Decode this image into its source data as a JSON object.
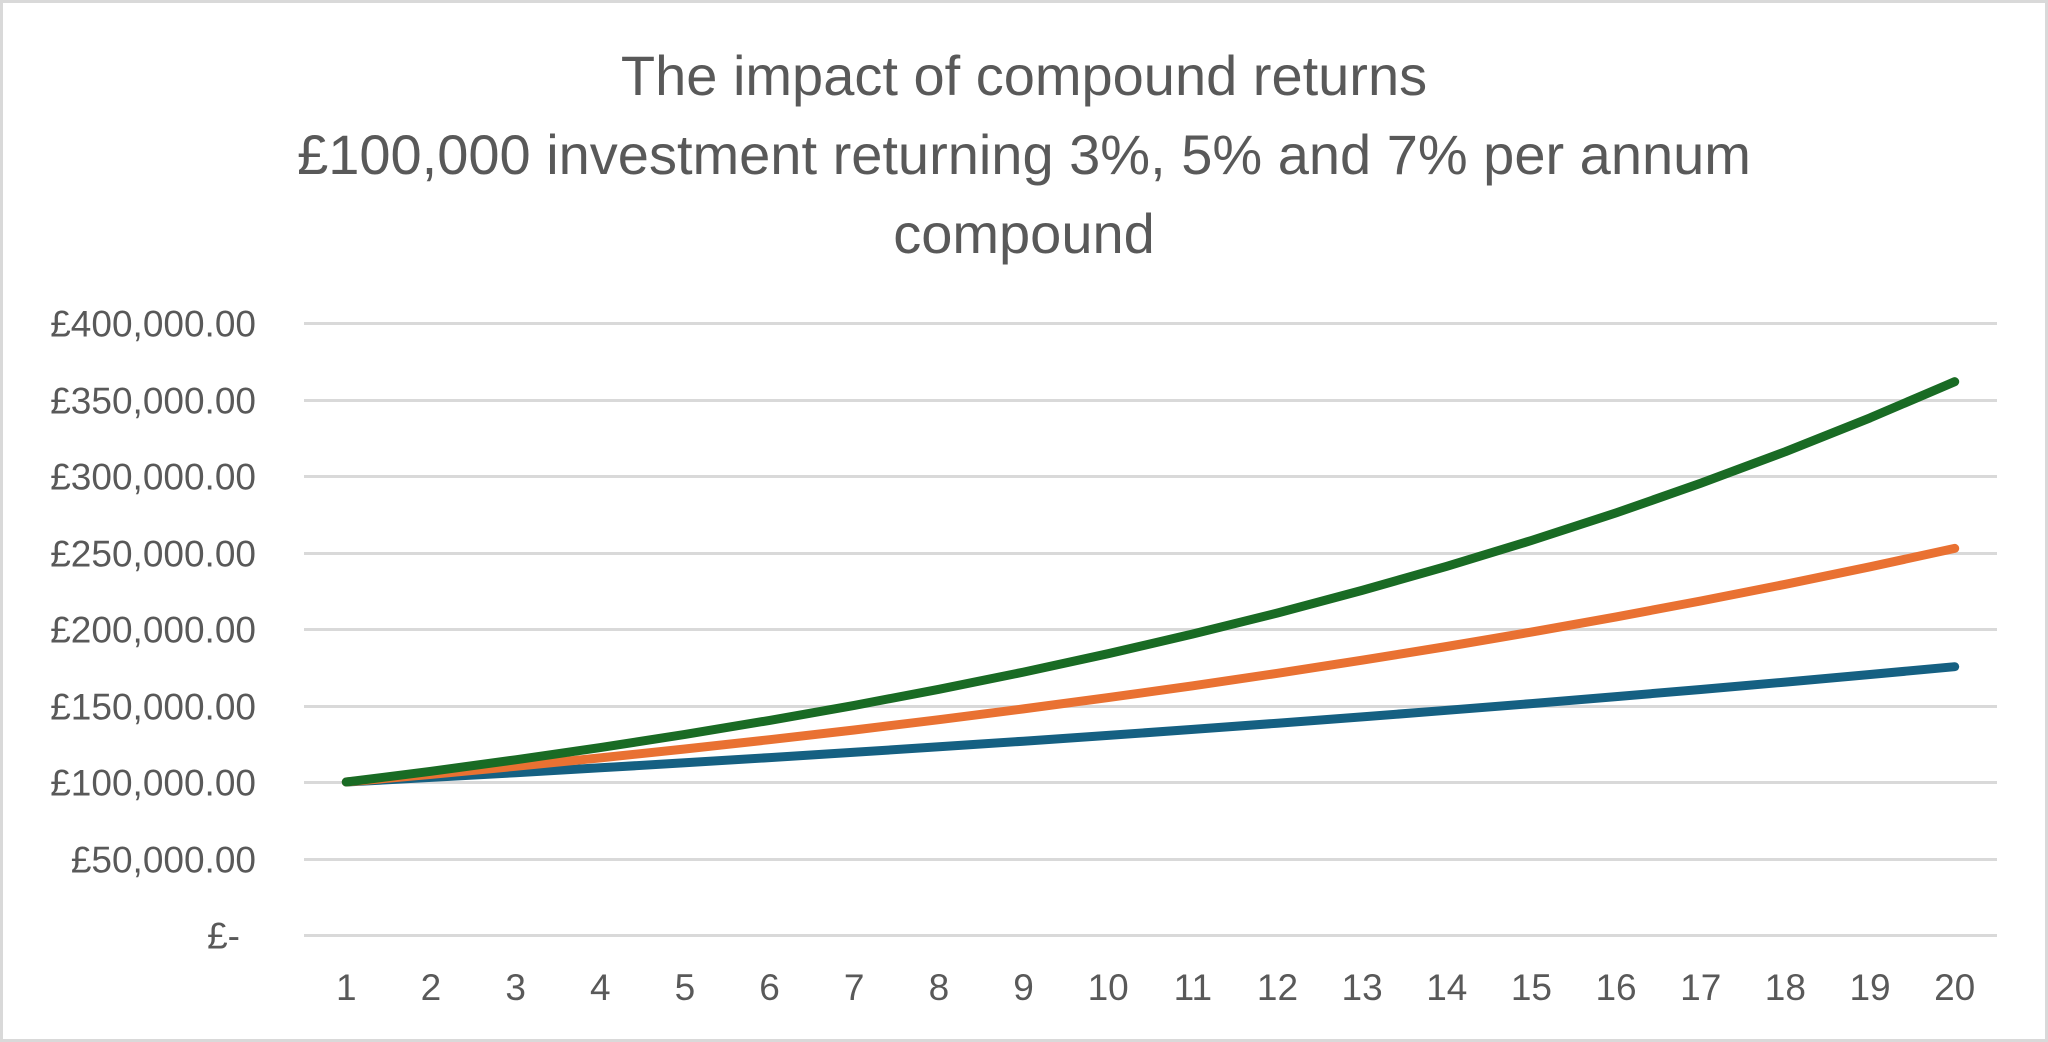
{
  "chart_data": {
    "type": "line",
    "title": "The impact of compound returns",
    "subtitle_lines": [
      "£100,000 investment returning 3%, 5% and 7% per annum",
      "compound"
    ],
    "xlabel": "",
    "ylabel": "",
    "categories": [
      1,
      2,
      3,
      4,
      5,
      6,
      7,
      8,
      9,
      10,
      11,
      12,
      13,
      14,
      15,
      16,
      17,
      18,
      19,
      20
    ],
    "ylim": [
      0,
      400000
    ],
    "yticks": [
      0,
      50000,
      100000,
      150000,
      200000,
      250000,
      300000,
      350000,
      400000
    ],
    "ytick_labels": [
      "£-",
      "£50,000.00",
      "£100,000.00",
      "£150,000.00",
      "£200,000.00",
      "£250,000.00",
      "£300,000.00",
      "£350,000.00",
      "£400,000.00"
    ],
    "grid": true,
    "legend": "none",
    "series": [
      {
        "name": "3% per annum",
        "color": "#156082",
        "values": [
          100000,
          103000,
          106090,
          109272.7,
          112550.88,
          115927.41,
          119405.23,
          122987.39,
          126677.01,
          130477.32,
          134391.64,
          138423.39,
          142576.09,
          146853.37,
          151258.97,
          155796.74,
          160470.64,
          165284.76,
          170243.3,
          175350.6
        ]
      },
      {
        "name": "5% per annum",
        "color": "#e97132",
        "values": [
          100000,
          105000,
          110250,
          115762.5,
          121550.63,
          127628.16,
          134009.56,
          140710.04,
          147745.54,
          155132.82,
          162889.46,
          171033.94,
          179585.63,
          188564.91,
          197993.16,
          207892.82,
          218287.46,
          229201.83,
          240661.92,
          252695.02
        ]
      },
      {
        "name": "7% per annum",
        "color": "#196b24",
        "values": [
          100000,
          107000,
          114490,
          122504.3,
          131079.6,
          140255.17,
          150073.04,
          160578.15,
          171818.62,
          183845.92,
          196715.14,
          210485.2,
          225219.16,
          240984.5,
          257853.42,
          275903.16,
          295216.38,
          315881.52,
          337993.23,
          361652.76
        ]
      }
    ]
  },
  "style": {
    "text_color": "#595959",
    "grid_color": "#d9d9d9",
    "border_color": "#d9d9d9"
  }
}
